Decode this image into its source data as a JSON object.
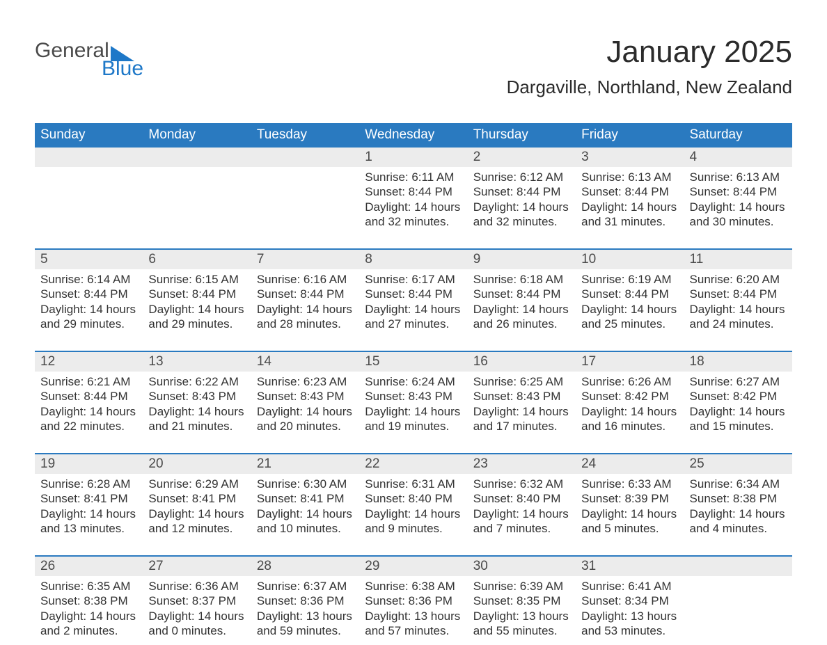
{
  "logo": {
    "word1": "General",
    "word2": "Blue"
  },
  "title": "January 2025",
  "location": "Dargaville, Northland, New Zealand",
  "colors": {
    "header_bg": "#2a7ac0",
    "header_text": "#ffffff",
    "daynum_bg": "#ececec",
    "rule": "#2a7ac0",
    "text": "#333333",
    "logo_gray": "#4a4a4a",
    "logo_blue": "#1e78c8",
    "page_bg": "#ffffff"
  },
  "day_headers": [
    "Sunday",
    "Monday",
    "Tuesday",
    "Wednesday",
    "Thursday",
    "Friday",
    "Saturday"
  ],
  "weeks": [
    [
      {
        "empty": true
      },
      {
        "empty": true
      },
      {
        "empty": true
      },
      {
        "num": "1",
        "sunrise": "Sunrise: 6:11 AM",
        "sunset": "Sunset: 8:44 PM",
        "daylight": "Daylight: 14 hours and 32 minutes."
      },
      {
        "num": "2",
        "sunrise": "Sunrise: 6:12 AM",
        "sunset": "Sunset: 8:44 PM",
        "daylight": "Daylight: 14 hours and 32 minutes."
      },
      {
        "num": "3",
        "sunrise": "Sunrise: 6:13 AM",
        "sunset": "Sunset: 8:44 PM",
        "daylight": "Daylight: 14 hours and 31 minutes."
      },
      {
        "num": "4",
        "sunrise": "Sunrise: 6:13 AM",
        "sunset": "Sunset: 8:44 PM",
        "daylight": "Daylight: 14 hours and 30 minutes."
      }
    ],
    [
      {
        "num": "5",
        "sunrise": "Sunrise: 6:14 AM",
        "sunset": "Sunset: 8:44 PM",
        "daylight": "Daylight: 14 hours and 29 minutes."
      },
      {
        "num": "6",
        "sunrise": "Sunrise: 6:15 AM",
        "sunset": "Sunset: 8:44 PM",
        "daylight": "Daylight: 14 hours and 29 minutes."
      },
      {
        "num": "7",
        "sunrise": "Sunrise: 6:16 AM",
        "sunset": "Sunset: 8:44 PM",
        "daylight": "Daylight: 14 hours and 28 minutes."
      },
      {
        "num": "8",
        "sunrise": "Sunrise: 6:17 AM",
        "sunset": "Sunset: 8:44 PM",
        "daylight": "Daylight: 14 hours and 27 minutes."
      },
      {
        "num": "9",
        "sunrise": "Sunrise: 6:18 AM",
        "sunset": "Sunset: 8:44 PM",
        "daylight": "Daylight: 14 hours and 26 minutes."
      },
      {
        "num": "10",
        "sunrise": "Sunrise: 6:19 AM",
        "sunset": "Sunset: 8:44 PM",
        "daylight": "Daylight: 14 hours and 25 minutes."
      },
      {
        "num": "11",
        "sunrise": "Sunrise: 6:20 AM",
        "sunset": "Sunset: 8:44 PM",
        "daylight": "Daylight: 14 hours and 24 minutes."
      }
    ],
    [
      {
        "num": "12",
        "sunrise": "Sunrise: 6:21 AM",
        "sunset": "Sunset: 8:44 PM",
        "daylight": "Daylight: 14 hours and 22 minutes."
      },
      {
        "num": "13",
        "sunrise": "Sunrise: 6:22 AM",
        "sunset": "Sunset: 8:43 PM",
        "daylight": "Daylight: 14 hours and 21 minutes."
      },
      {
        "num": "14",
        "sunrise": "Sunrise: 6:23 AM",
        "sunset": "Sunset: 8:43 PM",
        "daylight": "Daylight: 14 hours and 20 minutes."
      },
      {
        "num": "15",
        "sunrise": "Sunrise: 6:24 AM",
        "sunset": "Sunset: 8:43 PM",
        "daylight": "Daylight: 14 hours and 19 minutes."
      },
      {
        "num": "16",
        "sunrise": "Sunrise: 6:25 AM",
        "sunset": "Sunset: 8:43 PM",
        "daylight": "Daylight: 14 hours and 17 minutes."
      },
      {
        "num": "17",
        "sunrise": "Sunrise: 6:26 AM",
        "sunset": "Sunset: 8:42 PM",
        "daylight": "Daylight: 14 hours and 16 minutes."
      },
      {
        "num": "18",
        "sunrise": "Sunrise: 6:27 AM",
        "sunset": "Sunset: 8:42 PM",
        "daylight": "Daylight: 14 hours and 15 minutes."
      }
    ],
    [
      {
        "num": "19",
        "sunrise": "Sunrise: 6:28 AM",
        "sunset": "Sunset: 8:41 PM",
        "daylight": "Daylight: 14 hours and 13 minutes."
      },
      {
        "num": "20",
        "sunrise": "Sunrise: 6:29 AM",
        "sunset": "Sunset: 8:41 PM",
        "daylight": "Daylight: 14 hours and 12 minutes."
      },
      {
        "num": "21",
        "sunrise": "Sunrise: 6:30 AM",
        "sunset": "Sunset: 8:41 PM",
        "daylight": "Daylight: 14 hours and 10 minutes."
      },
      {
        "num": "22",
        "sunrise": "Sunrise: 6:31 AM",
        "sunset": "Sunset: 8:40 PM",
        "daylight": "Daylight: 14 hours and 9 minutes."
      },
      {
        "num": "23",
        "sunrise": "Sunrise: 6:32 AM",
        "sunset": "Sunset: 8:40 PM",
        "daylight": "Daylight: 14 hours and 7 minutes."
      },
      {
        "num": "24",
        "sunrise": "Sunrise: 6:33 AM",
        "sunset": "Sunset: 8:39 PM",
        "daylight": "Daylight: 14 hours and 5 minutes."
      },
      {
        "num": "25",
        "sunrise": "Sunrise: 6:34 AM",
        "sunset": "Sunset: 8:38 PM",
        "daylight": "Daylight: 14 hours and 4 minutes."
      }
    ],
    [
      {
        "num": "26",
        "sunrise": "Sunrise: 6:35 AM",
        "sunset": "Sunset: 8:38 PM",
        "daylight": "Daylight: 14 hours and 2 minutes."
      },
      {
        "num": "27",
        "sunrise": "Sunrise: 6:36 AM",
        "sunset": "Sunset: 8:37 PM",
        "daylight": "Daylight: 14 hours and 0 minutes."
      },
      {
        "num": "28",
        "sunrise": "Sunrise: 6:37 AM",
        "sunset": "Sunset: 8:36 PM",
        "daylight": "Daylight: 13 hours and 59 minutes."
      },
      {
        "num": "29",
        "sunrise": "Sunrise: 6:38 AM",
        "sunset": "Sunset: 8:36 PM",
        "daylight": "Daylight: 13 hours and 57 minutes."
      },
      {
        "num": "30",
        "sunrise": "Sunrise: 6:39 AM",
        "sunset": "Sunset: 8:35 PM",
        "daylight": "Daylight: 13 hours and 55 minutes."
      },
      {
        "num": "31",
        "sunrise": "Sunrise: 6:41 AM",
        "sunset": "Sunset: 8:34 PM",
        "daylight": "Daylight: 13 hours and 53 minutes."
      },
      {
        "empty": true
      }
    ]
  ]
}
